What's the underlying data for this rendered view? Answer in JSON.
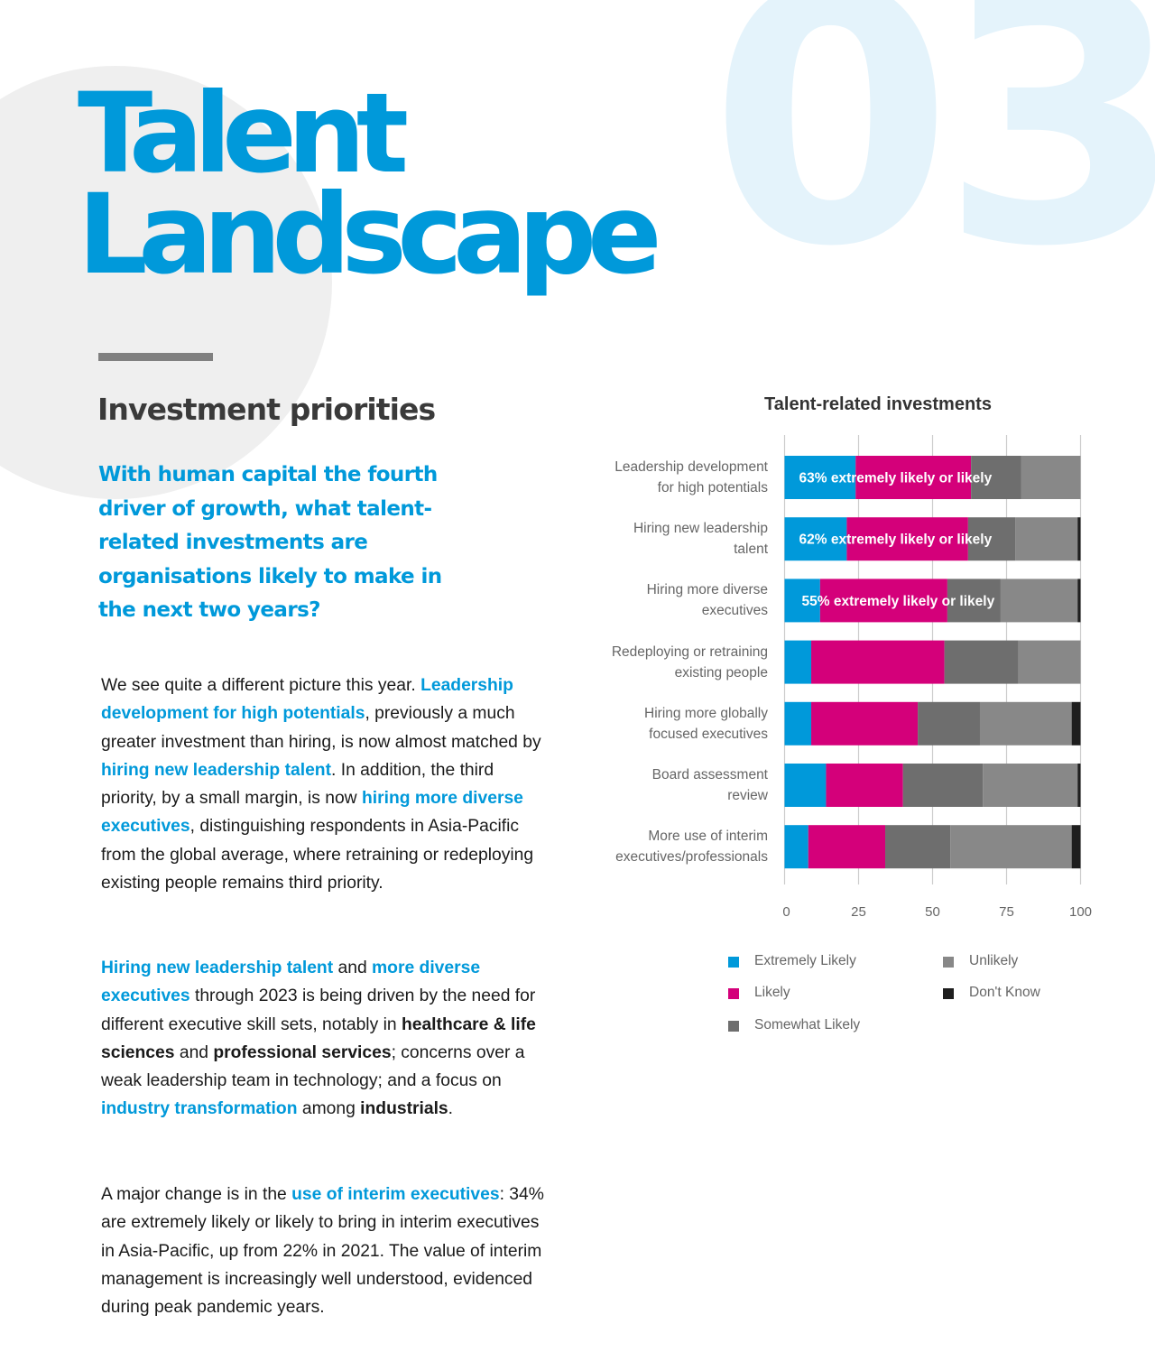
{
  "page": {
    "section_number": "03",
    "title_line1": "Talent",
    "title_line2": "Landscape",
    "section_heading": "Investment priorities",
    "lead_question": "With human capital the fourth driver of growth, what talent-related investments are organisations likely to make in the next two years?"
  },
  "paragraphs": [
    [
      {
        "text": "We see quite a different picture this year. ",
        "style": "normal"
      },
      {
        "text": "Leadership development for high potentials",
        "style": "highlight"
      },
      {
        "text": ", previously a much greater investment than hiring, is now almost matched by ",
        "style": "normal"
      },
      {
        "text": "hiring new leadership talent",
        "style": "highlight"
      },
      {
        "text": ". In addition, the third priority, by a small margin, is now ",
        "style": "normal"
      },
      {
        "text": "hiring more diverse executives",
        "style": "highlight"
      },
      {
        "text": ", distinguishing respondents in Asia-Pacific from the global average, where retraining or redeploying existing people remains third priority.",
        "style": "normal"
      }
    ],
    [
      {
        "text": "Hiring new leadership talent",
        "style": "highlight"
      },
      {
        "text": " and ",
        "style": "normal"
      },
      {
        "text": "more diverse executives",
        "style": "highlight"
      },
      {
        "text": " through 2023 is being driven by the need for different executive skill sets, notably in ",
        "style": "normal"
      },
      {
        "text": "healthcare & life sciences",
        "style": "bold"
      },
      {
        "text": " and ",
        "style": "normal"
      },
      {
        "text": "professional services",
        "style": "bold"
      },
      {
        "text": "; concerns over a weak leadership team in technology; and a focus on ",
        "style": "normal"
      },
      {
        "text": "industry transformation",
        "style": "highlight"
      },
      {
        "text": " among ",
        "style": "normal"
      },
      {
        "text": "industrials",
        "style": "bold"
      },
      {
        "text": ".",
        "style": "normal"
      }
    ],
    [
      {
        "text": "A major change is in the ",
        "style": "normal"
      },
      {
        "text": "use of interim executives",
        "style": "highlight"
      },
      {
        "text": ": 34% are extremely likely or likely to bring in interim executives in Asia-Pacific, up from 22% in 2021. The value of interim management is increasingly well understood, evidenced during peak pandemic years.",
        "style": "normal"
      }
    ]
  ],
  "colors": {
    "brand_blue": "#0099da",
    "watermark": "#e4f3fb",
    "circle": "#efefef"
  },
  "chart_data": {
    "type": "bar",
    "orientation": "horizontal",
    "stacked": true,
    "title": "Talent-related investments",
    "xlabel": "",
    "ylabel": "",
    "xlim": [
      0,
      100
    ],
    "xticks": [
      0,
      25,
      50,
      75,
      100
    ],
    "grid": true,
    "legend_position": "bottom",
    "categories": [
      [
        "Leadership development",
        "for high potentials"
      ],
      [
        "Hiring new leadership",
        "talent"
      ],
      [
        "Hiring more diverse",
        "executives"
      ],
      [
        "Redeploying or retraining",
        "existing people"
      ],
      [
        "Hiring more globally",
        "focused executives"
      ],
      [
        "Board assessment",
        "review"
      ],
      [
        "More use of interim",
        "executives/professionals"
      ]
    ],
    "series": [
      {
        "name": "Extremely Likely",
        "color": "#0099da",
        "values": [
          24,
          21,
          12,
          9,
          9,
          14,
          8
        ]
      },
      {
        "name": "Likely",
        "color": "#d4007a",
        "values": [
          39,
          41,
          43,
          45,
          36,
          26,
          26
        ]
      },
      {
        "name": "Somewhat Likely",
        "color": "#6e6e6e",
        "values": [
          17,
          16,
          18,
          25,
          21,
          27,
          22
        ]
      },
      {
        "name": "Unlikely",
        "color": "#888888",
        "values": [
          20,
          21,
          26,
          21,
          31,
          32,
          41
        ]
      },
      {
        "name": "Don't Know",
        "color": "#1e1e1e",
        "values": [
          0,
          1,
          1,
          0,
          3,
          1,
          3
        ]
      }
    ],
    "annotations": [
      {
        "row": 0,
        "text": "63% extremely likely or likely"
      },
      {
        "row": 1,
        "text": "62% extremely likely or likely"
      },
      {
        "row": 2,
        "text": "55% extremely likely or likely"
      }
    ],
    "legend_order": [
      "Extremely Likely",
      "Likely",
      "Somewhat Likely",
      "Unlikely",
      "Don't Know"
    ]
  }
}
